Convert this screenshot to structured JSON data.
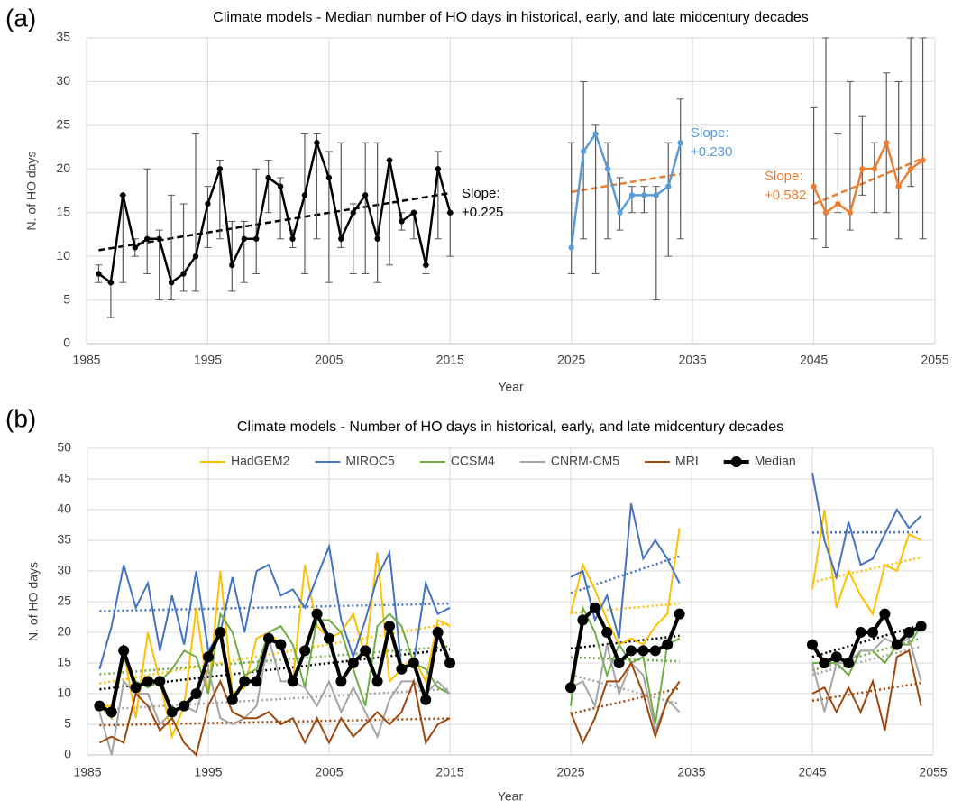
{
  "chart_data": [
    {
      "type": "line",
      "panel_label": "(a)",
      "title": "Climate models - Median number of HO days in historical, early, and late midcentury decades",
      "x_label": "Year",
      "y_label": "N. of HO days",
      "xlim": [
        1985,
        2055
      ],
      "xticks": [
        1985,
        1995,
        2005,
        2015,
        2025,
        2035,
        2045,
        2055
      ],
      "ylim": [
        0,
        35
      ],
      "yticks": [
        0,
        5,
        10,
        15,
        20,
        25,
        30,
        35
      ],
      "grid": true,
      "error_color": "#595959",
      "series": [
        {
          "color": "#000000",
          "trend_color": "#000000",
          "x": [
            1986,
            1987,
            1988,
            1989,
            1990,
            1991,
            1992,
            1993,
            1994,
            1995,
            1996,
            1997,
            1998,
            1999,
            2000,
            2001,
            2002,
            2003,
            2004,
            2005,
            2006,
            2007,
            2008,
            2009,
            2010,
            2011,
            2012,
            2013,
            2014,
            2015
          ],
          "values": [
            8,
            7,
            17,
            11,
            12,
            12,
            7,
            8,
            10,
            16,
            20,
            9,
            12,
            12,
            19,
            18,
            12,
            17,
            23,
            19,
            12,
            15,
            17,
            12,
            21,
            14,
            15,
            9,
            20,
            15
          ],
          "ymin": [
            7,
            3,
            7,
            10,
            8,
            5,
            5,
            6,
            6,
            11,
            12,
            6,
            7,
            8,
            15,
            12,
            11,
            8,
            12,
            7,
            11,
            8,
            8,
            7,
            9,
            13,
            12,
            8,
            12,
            10
          ],
          "ymax": [
            9,
            7,
            17,
            12,
            20,
            13,
            17,
            16,
            24,
            18,
            21,
            14,
            14,
            20,
            21,
            19,
            13,
            24,
            24,
            22,
            23,
            16,
            23,
            23,
            21,
            15,
            15,
            9,
            22,
            15
          ]
        },
        {
          "color": "#5b9bd5",
          "trend_color": "#ed7d31",
          "x": [
            2025,
            2026,
            2027,
            2028,
            2029,
            2030,
            2031,
            2032,
            2033,
            2034
          ],
          "values": [
            11,
            22,
            24,
            20,
            15,
            17,
            17,
            17,
            18,
            23
          ],
          "ymin": [
            8,
            12,
            8,
            12,
            13,
            15,
            15,
            5,
            10,
            12
          ],
          "ymax": [
            23,
            30,
            25,
            23,
            19,
            18,
            18,
            18,
            23,
            28
          ]
        },
        {
          "color": "#ed7d31",
          "trend_color": "#ed7d31",
          "x": [
            2045,
            2046,
            2047,
            2048,
            2049,
            2050,
            2051,
            2052,
            2053,
            2054
          ],
          "values": [
            18,
            15,
            16,
            15,
            20,
            20,
            23,
            18,
            20,
            21
          ],
          "ymin": [
            12,
            11,
            15,
            13,
            17,
            15,
            15,
            12,
            18,
            12
          ],
          "ymax": [
            27,
            35,
            24,
            30,
            26,
            23,
            31,
            30,
            35,
            35
          ]
        }
      ],
      "annotations": [
        {
          "lines": [
            "Slope:",
            "+0.225"
          ],
          "color": "#000000"
        },
        {
          "lines": [
            "Slope:",
            "+0.230"
          ],
          "color": "#5b9bd5"
        },
        {
          "lines": [
            "Slope:",
            "+0.582"
          ],
          "color": "#ed7d31"
        }
      ]
    },
    {
      "type": "line",
      "panel_label": "(b)",
      "title": "Climate models - Number of HO days in historical, early, and late midcentury decades",
      "x_label": "Year",
      "y_label": "N. of HO days",
      "xlim": [
        1985,
        2055
      ],
      "xticks": [
        1985,
        1995,
        2005,
        2015,
        2025,
        2035,
        2045,
        2055
      ],
      "ylim": [
        0,
        50
      ],
      "yticks": [
        0,
        5,
        10,
        15,
        20,
        25,
        30,
        35,
        40,
        45,
        50
      ],
      "grid": true,
      "legend": "top",
      "x": [
        1986,
        1987,
        1988,
        1989,
        1990,
        1991,
        1992,
        1993,
        1994,
        1995,
        1996,
        1997,
        1998,
        1999,
        2000,
        2001,
        2002,
        2003,
        2004,
        2005,
        2006,
        2007,
        2008,
        2009,
        2010,
        2011,
        2012,
        2013,
        2014,
        2015,
        2025,
        2026,
        2027,
        2028,
        2029,
        2030,
        2031,
        2032,
        2033,
        2034,
        2045,
        2046,
        2047,
        2048,
        2049,
        2050,
        2051,
        2052,
        2053,
        2054
      ],
      "series": [
        {
          "name": "HadGEM2",
          "color": "#ffc000",
          "values": [
            8,
            8,
            17,
            6,
            20,
            12,
            3,
            8,
            24,
            10,
            30,
            10,
            11,
            19,
            20,
            18,
            12,
            31,
            21,
            19,
            20,
            23,
            16,
            33,
            12,
            14,
            16,
            12,
            22,
            21,
            23,
            31,
            27,
            22,
            18,
            19,
            18,
            21,
            23,
            37,
            27,
            40,
            24,
            30,
            26,
            23,
            31,
            30,
            36,
            35
          ]
        },
        {
          "name": "MIROC5",
          "color": "#4472c4",
          "values": [
            14,
            21,
            31,
            24,
            28,
            17,
            26,
            18,
            30,
            17,
            20,
            29,
            20,
            30,
            31,
            26,
            27,
            24,
            29,
            34,
            22,
            16,
            22,
            29,
            33,
            14,
            15,
            28,
            23,
            24,
            29,
            30,
            22,
            26,
            19,
            41,
            32,
            35,
            32,
            28,
            46,
            35,
            29,
            38,
            31,
            32,
            36,
            40,
            37,
            39
          ]
        },
        {
          "name": "CCSM4",
          "color": "#70ad47",
          "values": [
            8,
            6,
            16,
            12,
            11,
            12,
            14,
            17,
            16,
            10,
            23,
            20,
            13,
            14,
            20,
            21,
            18,
            11,
            22,
            22,
            20,
            14,
            8,
            21,
            23,
            21,
            15,
            14,
            11,
            10,
            8,
            24,
            20,
            13,
            18,
            15,
            16,
            5,
            18,
            19,
            15,
            15,
            15,
            13,
            17,
            17,
            15,
            18,
            18,
            21
          ]
        },
        {
          "name": "CNRM-CM5",
          "color": "#a5a5a5",
          "values": [
            7,
            0,
            12,
            10,
            10,
            5,
            7,
            8,
            7,
            14,
            6,
            5,
            6,
            8,
            19,
            12,
            12,
            11,
            8,
            12,
            7,
            11,
            7,
            3,
            9,
            12,
            12,
            10,
            12,
            10,
            11,
            12,
            8,
            18,
            10,
            15,
            13,
            4,
            9,
            7,
            15,
            7,
            15,
            15,
            17,
            17,
            19,
            18,
            19,
            12
          ]
        },
        {
          "name": "MRI",
          "color": "#9e480e",
          "values": [
            2,
            3,
            2,
            10,
            8,
            4,
            6,
            2,
            0,
            8,
            12,
            7,
            6,
            6,
            7,
            5,
            6,
            2,
            6,
            2,
            6,
            3,
            5,
            7,
            5,
            7,
            12,
            2,
            5,
            6,
            7,
            2,
            6,
            12,
            12,
            15,
            10,
            3,
            9,
            12,
            10,
            11,
            7,
            11,
            7,
            12,
            4,
            16,
            17,
            8
          ]
        },
        {
          "name": "Median",
          "color": "#000000",
          "markers": true,
          "values": [
            8,
            7,
            17,
            11,
            12,
            12,
            7,
            8,
            10,
            16,
            20,
            9,
            12,
            12,
            19,
            18,
            12,
            17,
            23,
            19,
            12,
            15,
            17,
            12,
            21,
            14,
            15,
            9,
            20,
            15,
            11,
            22,
            24,
            20,
            15,
            17,
            17,
            17,
            18,
            23,
            18,
            15,
            16,
            15,
            20,
            20,
            23,
            18,
            20,
            21
          ]
        }
      ]
    }
  ]
}
